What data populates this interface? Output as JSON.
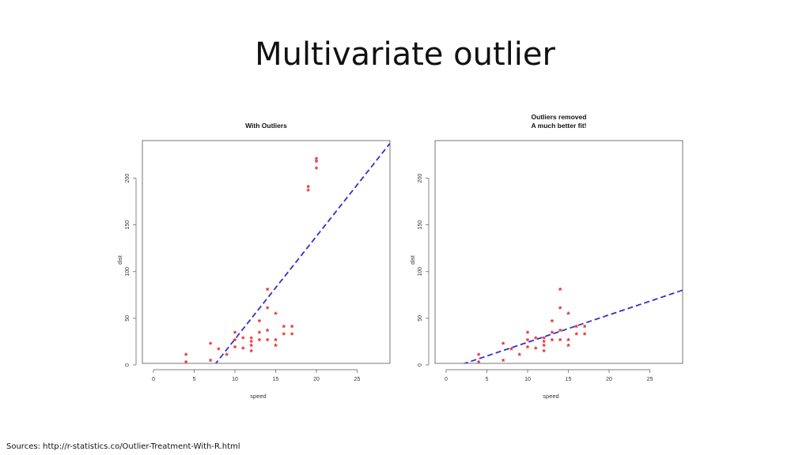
{
  "slide": {
    "title": "Multivariate outlier",
    "source": "Sources: http://r-statistics.co/Outlier-Treatment-With-R.html"
  },
  "colors": {
    "points": "#e8202a",
    "fit_line": "#3232c8",
    "axis": "#555555"
  },
  "chart_data": [
    {
      "type": "scatter",
      "title": "With Outliers",
      "xlabel": "speed",
      "ylabel": "dist",
      "xlim": [
        0,
        28
      ],
      "ylim": [
        0,
        220
      ],
      "xticks": [
        0,
        5,
        10,
        15,
        20,
        25
      ],
      "yticks": [
        0,
        50,
        100,
        150,
        200
      ],
      "marker": "star",
      "points": [
        [
          4,
          2
        ],
        [
          4,
          10
        ],
        [
          7,
          4
        ],
        [
          7,
          22
        ],
        [
          8,
          16
        ],
        [
          9,
          10
        ],
        [
          10,
          18
        ],
        [
          10,
          26
        ],
        [
          10,
          34
        ],
        [
          11,
          17
        ],
        [
          11,
          28
        ],
        [
          12,
          14
        ],
        [
          12,
          20
        ],
        [
          12,
          24
        ],
        [
          12,
          28
        ],
        [
          13,
          26
        ],
        [
          13,
          34
        ],
        [
          13,
          46
        ],
        [
          14,
          26
        ],
        [
          14,
          36
        ],
        [
          14,
          60
        ],
        [
          14,
          80
        ],
        [
          15,
          20
        ],
        [
          15,
          26
        ],
        [
          15,
          54
        ],
        [
          16,
          32
        ],
        [
          16,
          40
        ],
        [
          17,
          32
        ],
        [
          17,
          40
        ],
        [
          19,
          186
        ],
        [
          19,
          190
        ],
        [
          20,
          210
        ],
        [
          20,
          217
        ],
        [
          20,
          220
        ]
      ],
      "fit_line": {
        "style": "dashed",
        "x": [
          7.5,
          29
        ],
        "y": [
          0,
          237
        ]
      }
    },
    {
      "type": "scatter",
      "title": "Outliers removed\nA much better fit!",
      "xlabel": "speed",
      "ylabel": "dist",
      "xlim": [
        0,
        28
      ],
      "ylim": [
        0,
        220
      ],
      "xticks": [
        0,
        5,
        10,
        15,
        20,
        25
      ],
      "yticks": [
        0,
        50,
        100,
        150,
        200
      ],
      "marker": "star",
      "points": [
        [
          4,
          2
        ],
        [
          4,
          10
        ],
        [
          7,
          4
        ],
        [
          7,
          22
        ],
        [
          8,
          16
        ],
        [
          9,
          10
        ],
        [
          10,
          18
        ],
        [
          10,
          26
        ],
        [
          10,
          34
        ],
        [
          11,
          17
        ],
        [
          11,
          28
        ],
        [
          12,
          14
        ],
        [
          12,
          20
        ],
        [
          12,
          24
        ],
        [
          12,
          28
        ],
        [
          13,
          26
        ],
        [
          13,
          34
        ],
        [
          13,
          46
        ],
        [
          14,
          26
        ],
        [
          14,
          36
        ],
        [
          14,
          60
        ],
        [
          14,
          80
        ],
        [
          15,
          20
        ],
        [
          15,
          26
        ],
        [
          15,
          54
        ],
        [
          16,
          32
        ],
        [
          16,
          40
        ],
        [
          17,
          32
        ],
        [
          17,
          40
        ]
      ],
      "fit_line": {
        "style": "dashed",
        "x": [
          -1,
          29
        ],
        "y": [
          -8,
          80
        ]
      }
    }
  ]
}
